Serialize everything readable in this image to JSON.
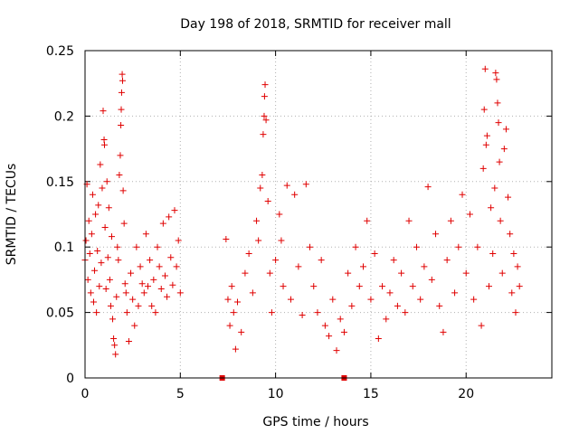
{
  "chart_data": {
    "type": "scatter",
    "title": "Day 198 of 2018, SRMTID for receiver mall",
    "xlabel": "GPS time / hours",
    "ylabel": "SRMTID / TECUs",
    "xlim": [
      0,
      24.5
    ],
    "ylim": [
      0,
      0.25
    ],
    "xticks": [
      0,
      5,
      10,
      15,
      20
    ],
    "xtick_labels": [
      "0",
      "5",
      "10",
      "15",
      "20"
    ],
    "yticks": [
      0,
      0.05,
      0.1,
      0.15,
      0.2,
      0.25
    ],
    "ytick_labels": [
      "0",
      "0.05",
      "0.1",
      "0.15",
      "0.2",
      "0.25"
    ],
    "grid": true,
    "marker": "+",
    "color": "#e00000",
    "zero_points": [
      {
        "x": 7.2,
        "y": 0
      },
      {
        "x": 13.6,
        "y": 0
      }
    ],
    "series": [
      {
        "name": "SRMTID",
        "points": [
          {
            "x": 0.0,
            "y": 0.09
          },
          {
            "x": 0.05,
            "y": 0.105
          },
          {
            "x": 0.1,
            "y": 0.148
          },
          {
            "x": 0.15,
            "y": 0.075
          },
          {
            "x": 0.2,
            "y": 0.12
          },
          {
            "x": 0.25,
            "y": 0.095
          },
          {
            "x": 0.3,
            "y": 0.065
          },
          {
            "x": 0.35,
            "y": 0.11
          },
          {
            "x": 0.4,
            "y": 0.14
          },
          {
            "x": 0.45,
            "y": 0.058
          },
          {
            "x": 0.5,
            "y": 0.082
          },
          {
            "x": 0.55,
            "y": 0.125
          },
          {
            "x": 0.6,
            "y": 0.05
          },
          {
            "x": 0.65,
            "y": 0.097
          },
          {
            "x": 0.7,
            "y": 0.132
          },
          {
            "x": 0.75,
            "y": 0.07
          },
          {
            "x": 0.8,
            "y": 0.163
          },
          {
            "x": 0.85,
            "y": 0.088
          },
          {
            "x": 0.9,
            "y": 0.145
          },
          {
            "x": 0.95,
            "y": 0.204
          },
          {
            "x": 1.0,
            "y": 0.182
          },
          {
            "x": 1.02,
            "y": 0.178
          },
          {
            "x": 1.05,
            "y": 0.115
          },
          {
            "x": 1.1,
            "y": 0.068
          },
          {
            "x": 1.15,
            "y": 0.15
          },
          {
            "x": 1.2,
            "y": 0.092
          },
          {
            "x": 1.25,
            "y": 0.13
          },
          {
            "x": 1.3,
            "y": 0.075
          },
          {
            "x": 1.35,
            "y": 0.055
          },
          {
            "x": 1.4,
            "y": 0.108
          },
          {
            "x": 1.45,
            "y": 0.045
          },
          {
            "x": 1.5,
            "y": 0.03
          },
          {
            "x": 1.55,
            "y": 0.025
          },
          {
            "x": 1.6,
            "y": 0.018
          },
          {
            "x": 1.65,
            "y": 0.062
          },
          {
            "x": 1.7,
            "y": 0.1
          },
          {
            "x": 1.75,
            "y": 0.09
          },
          {
            "x": 1.8,
            "y": 0.155
          },
          {
            "x": 1.85,
            "y": 0.17
          },
          {
            "x": 1.88,
            "y": 0.193
          },
          {
            "x": 1.9,
            "y": 0.205
          },
          {
            "x": 1.92,
            "y": 0.218
          },
          {
            "x": 1.95,
            "y": 0.232
          },
          {
            "x": 1.97,
            "y": 0.227
          },
          {
            "x": 2.0,
            "y": 0.143
          },
          {
            "x": 2.05,
            "y": 0.118
          },
          {
            "x": 2.1,
            "y": 0.072
          },
          {
            "x": 2.15,
            "y": 0.065
          },
          {
            "x": 2.2,
            "y": 0.05
          },
          {
            "x": 2.3,
            "y": 0.028
          },
          {
            "x": 2.4,
            "y": 0.08
          },
          {
            "x": 2.5,
            "y": 0.06
          },
          {
            "x": 2.6,
            "y": 0.04
          },
          {
            "x": 2.7,
            "y": 0.1
          },
          {
            "x": 2.8,
            "y": 0.055
          },
          {
            "x": 2.9,
            "y": 0.085
          },
          {
            "x": 3.0,
            "y": 0.072
          },
          {
            "x": 3.1,
            "y": 0.065
          },
          {
            "x": 3.2,
            "y": 0.11
          },
          {
            "x": 3.3,
            "y": 0.07
          },
          {
            "x": 3.4,
            "y": 0.09
          },
          {
            "x": 3.5,
            "y": 0.055
          },
          {
            "x": 3.6,
            "y": 0.075
          },
          {
            "x": 3.7,
            "y": 0.05
          },
          {
            "x": 3.8,
            "y": 0.1
          },
          {
            "x": 3.9,
            "y": 0.085
          },
          {
            "x": 4.0,
            "y": 0.068
          },
          {
            "x": 4.1,
            "y": 0.118
          },
          {
            "x": 4.2,
            "y": 0.078
          },
          {
            "x": 4.3,
            "y": 0.062
          },
          {
            "x": 4.4,
            "y": 0.123
          },
          {
            "x": 4.5,
            "y": 0.092
          },
          {
            "x": 4.6,
            "y": 0.071
          },
          {
            "x": 4.7,
            "y": 0.128
          },
          {
            "x": 4.8,
            "y": 0.085
          },
          {
            "x": 4.9,
            "y": 0.105
          },
          {
            "x": 5.0,
            "y": 0.065
          },
          {
            "x": 7.4,
            "y": 0.106
          },
          {
            "x": 7.5,
            "y": 0.06
          },
          {
            "x": 7.6,
            "y": 0.04
          },
          {
            "x": 7.7,
            "y": 0.07
          },
          {
            "x": 7.8,
            "y": 0.05
          },
          {
            "x": 7.9,
            "y": 0.022
          },
          {
            "x": 8.0,
            "y": 0.058
          },
          {
            "x": 8.2,
            "y": 0.035
          },
          {
            "x": 8.4,
            "y": 0.08
          },
          {
            "x": 8.6,
            "y": 0.095
          },
          {
            "x": 8.8,
            "y": 0.065
          },
          {
            "x": 9.0,
            "y": 0.12
          },
          {
            "x": 9.1,
            "y": 0.105
          },
          {
            "x": 9.2,
            "y": 0.145
          },
          {
            "x": 9.3,
            "y": 0.155
          },
          {
            "x": 9.35,
            "y": 0.186
          },
          {
            "x": 9.4,
            "y": 0.2
          },
          {
            "x": 9.42,
            "y": 0.215
          },
          {
            "x": 9.45,
            "y": 0.224
          },
          {
            "x": 9.5,
            "y": 0.197
          },
          {
            "x": 9.6,
            "y": 0.135
          },
          {
            "x": 9.7,
            "y": 0.08
          },
          {
            "x": 9.8,
            "y": 0.05
          },
          {
            "x": 10.0,
            "y": 0.09
          },
          {
            "x": 10.2,
            "y": 0.125
          },
          {
            "x": 10.3,
            "y": 0.105
          },
          {
            "x": 10.4,
            "y": 0.07
          },
          {
            "x": 10.6,
            "y": 0.147
          },
          {
            "x": 10.8,
            "y": 0.06
          },
          {
            "x": 11.0,
            "y": 0.14
          },
          {
            "x": 11.2,
            "y": 0.085
          },
          {
            "x": 11.4,
            "y": 0.048
          },
          {
            "x": 11.6,
            "y": 0.148
          },
          {
            "x": 11.8,
            "y": 0.1
          },
          {
            "x": 12.0,
            "y": 0.07
          },
          {
            "x": 12.2,
            "y": 0.05
          },
          {
            "x": 12.4,
            "y": 0.09
          },
          {
            "x": 12.6,
            "y": 0.04
          },
          {
            "x": 12.8,
            "y": 0.032
          },
          {
            "x": 13.0,
            "y": 0.06
          },
          {
            "x": 13.2,
            "y": 0.021
          },
          {
            "x": 13.4,
            "y": 0.045
          },
          {
            "x": 13.6,
            "y": 0.035
          },
          {
            "x": 13.8,
            "y": 0.08
          },
          {
            "x": 14.0,
            "y": 0.055
          },
          {
            "x": 14.2,
            "y": 0.1
          },
          {
            "x": 14.4,
            "y": 0.07
          },
          {
            "x": 14.6,
            "y": 0.085
          },
          {
            "x": 14.8,
            "y": 0.12
          },
          {
            "x": 15.0,
            "y": 0.06
          },
          {
            "x": 15.2,
            "y": 0.095
          },
          {
            "x": 15.4,
            "y": 0.03
          },
          {
            "x": 15.6,
            "y": 0.07
          },
          {
            "x": 15.8,
            "y": 0.045
          },
          {
            "x": 16.0,
            "y": 0.065
          },
          {
            "x": 16.2,
            "y": 0.09
          },
          {
            "x": 16.4,
            "y": 0.055
          },
          {
            "x": 16.6,
            "y": 0.08
          },
          {
            "x": 16.8,
            "y": 0.05
          },
          {
            "x": 17.0,
            "y": 0.12
          },
          {
            "x": 17.2,
            "y": 0.07
          },
          {
            "x": 17.4,
            "y": 0.1
          },
          {
            "x": 17.6,
            "y": 0.06
          },
          {
            "x": 17.8,
            "y": 0.085
          },
          {
            "x": 18.0,
            "y": 0.146
          },
          {
            "x": 18.2,
            "y": 0.075
          },
          {
            "x": 18.4,
            "y": 0.11
          },
          {
            "x": 18.6,
            "y": 0.055
          },
          {
            "x": 18.8,
            "y": 0.035
          },
          {
            "x": 19.0,
            "y": 0.09
          },
          {
            "x": 19.2,
            "y": 0.12
          },
          {
            "x": 19.4,
            "y": 0.065
          },
          {
            "x": 19.6,
            "y": 0.1
          },
          {
            "x": 19.8,
            "y": 0.14
          },
          {
            "x": 20.0,
            "y": 0.08
          },
          {
            "x": 20.2,
            "y": 0.125
          },
          {
            "x": 20.4,
            "y": 0.06
          },
          {
            "x": 20.6,
            "y": 0.1
          },
          {
            "x": 20.8,
            "y": 0.04
          },
          {
            "x": 20.9,
            "y": 0.16
          },
          {
            "x": 20.95,
            "y": 0.205
          },
          {
            "x": 21.0,
            "y": 0.236
          },
          {
            "x": 21.05,
            "y": 0.178
          },
          {
            "x": 21.1,
            "y": 0.185
          },
          {
            "x": 21.2,
            "y": 0.07
          },
          {
            "x": 21.3,
            "y": 0.13
          },
          {
            "x": 21.4,
            "y": 0.095
          },
          {
            "x": 21.5,
            "y": 0.145
          },
          {
            "x": 21.55,
            "y": 0.233
          },
          {
            "x": 21.6,
            "y": 0.228
          },
          {
            "x": 21.65,
            "y": 0.21
          },
          {
            "x": 21.7,
            "y": 0.195
          },
          {
            "x": 21.75,
            "y": 0.165
          },
          {
            "x": 21.8,
            "y": 0.12
          },
          {
            "x": 21.9,
            "y": 0.08
          },
          {
            "x": 22.0,
            "y": 0.175
          },
          {
            "x": 22.1,
            "y": 0.19
          },
          {
            "x": 22.2,
            "y": 0.138
          },
          {
            "x": 22.3,
            "y": 0.11
          },
          {
            "x": 22.4,
            "y": 0.065
          },
          {
            "x": 22.5,
            "y": 0.095
          },
          {
            "x": 22.6,
            "y": 0.05
          },
          {
            "x": 22.7,
            "y": 0.085
          },
          {
            "x": 22.8,
            "y": 0.07
          }
        ]
      }
    ]
  }
}
